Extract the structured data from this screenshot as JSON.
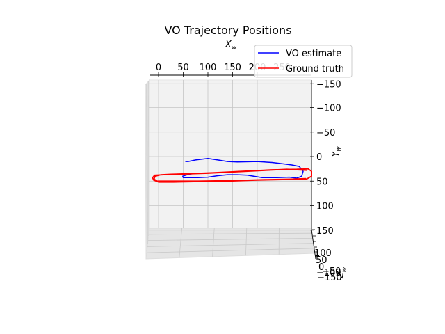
{
  "chart_data": {
    "type": "line",
    "projection": "3d",
    "title": "VO Trajectory Positions",
    "xlabel": "X_w",
    "ylabel": "Y_w",
    "zlabel": "Z_w",
    "x_ticks": [
      "0",
      "50",
      "100",
      "150",
      "200",
      "250"
    ],
    "y_ticks": [
      "−150",
      "−100",
      "−50",
      "0",
      "50",
      "100",
      "150"
    ],
    "z_ticks": [
      "100",
      "50",
      "0",
      "−50",
      "−100",
      "−150"
    ],
    "xlim": [
      -12,
      310
    ],
    "ylim": [
      -150,
      160
    ],
    "grid": true,
    "legend": "top-right",
    "series": [
      {
        "name": "VO estimate",
        "color": "#0000ff",
        "points": [
          [
            55,
            10
          ],
          [
            60,
            10
          ],
          [
            75,
            7
          ],
          [
            100,
            4
          ],
          [
            120,
            7
          ],
          [
            140,
            10
          ],
          [
            160,
            11
          ],
          [
            200,
            10
          ],
          [
            230,
            12
          ],
          [
            255,
            15
          ],
          [
            270,
            17
          ],
          [
            285,
            20
          ],
          [
            293,
            30
          ],
          [
            290,
            40
          ],
          [
            280,
            44
          ],
          [
            265,
            42
          ],
          [
            240,
            43
          ],
          [
            210,
            43
          ],
          [
            180,
            38
          ],
          [
            160,
            37
          ],
          [
            140,
            37
          ],
          [
            120,
            39
          ],
          [
            100,
            42
          ],
          [
            80,
            43
          ],
          [
            60,
            43
          ],
          [
            50,
            43
          ],
          [
            49,
            40
          ],
          [
            55,
            38
          ],
          [
            62,
            36
          ],
          [
            68,
            35
          ]
        ]
      },
      {
        "name": "Ground truth",
        "color": "#ff0000",
        "points": [
          [
            300,
            28
          ],
          [
            260,
            26
          ],
          [
            220,
            28
          ],
          [
            160,
            31
          ],
          [
            100,
            34
          ],
          [
            40,
            36
          ],
          [
            10,
            37
          ],
          [
            -8,
            38
          ],
          [
            -12,
            43
          ],
          [
            -10,
            48
          ],
          [
            0,
            52
          ],
          [
            30,
            52
          ],
          [
            80,
            51
          ],
          [
            140,
            50
          ],
          [
            200,
            48
          ],
          [
            250,
            47
          ],
          [
            285,
            47
          ],
          [
            300,
            46
          ],
          [
            310,
            40
          ],
          [
            310,
            30
          ],
          [
            303,
            25
          ],
          [
            280,
            26
          ],
          [
            230,
            27
          ],
          [
            170,
            30
          ],
          [
            110,
            33
          ],
          [
            60,
            35
          ],
          [
            25,
            36
          ],
          [
            5,
            37
          ],
          [
            -7,
            40
          ],
          [
            -9,
            46
          ],
          [
            -3,
            50
          ],
          [
            20,
            50
          ],
          [
            80,
            50
          ],
          [
            150,
            49
          ],
          [
            220,
            47
          ],
          [
            270,
            46
          ],
          [
            298,
            45
          ]
        ]
      }
    ]
  }
}
